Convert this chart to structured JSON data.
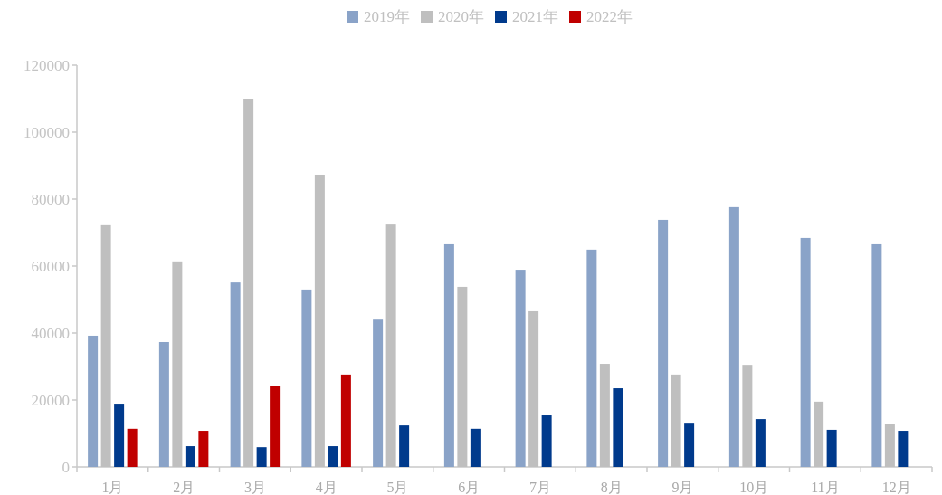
{
  "chart_data": {
    "type": "bar",
    "categories": [
      "1月",
      "2月",
      "3月",
      "4月",
      "5月",
      "6月",
      "7月",
      "8月",
      "9月",
      "10月",
      "11月",
      "12月"
    ],
    "series": [
      {
        "name": "2019年",
        "color": "#8aa3c8",
        "values": [
          39200,
          37300,
          55100,
          53000,
          44000,
          66500,
          58900,
          64900,
          73800,
          77600,
          68400,
          66500
        ]
      },
      {
        "name": "2020年",
        "color": "#bfbfbf",
        "values": [
          72200,
          61400,
          110000,
          87300,
          72400,
          53800,
          46500,
          30800,
          27600,
          30500,
          19500,
          12700
        ]
      },
      {
        "name": "2021年",
        "color": "#003a8c",
        "values": [
          18900,
          6200,
          5900,
          6200,
          12400,
          11400,
          15400,
          23500,
          13200,
          14300,
          11100,
          10800
        ]
      },
      {
        "name": "2022年",
        "color": "#c00000",
        "values": [
          11400,
          10800,
          24300,
          27600,
          null,
          null,
          null,
          null,
          null,
          null,
          null,
          null
        ]
      }
    ],
    "ylim": [
      0,
      120000
    ],
    "yticks": [
      0,
      20000,
      40000,
      60000,
      80000,
      100000,
      120000
    ],
    "grid": false,
    "legend": "top"
  }
}
